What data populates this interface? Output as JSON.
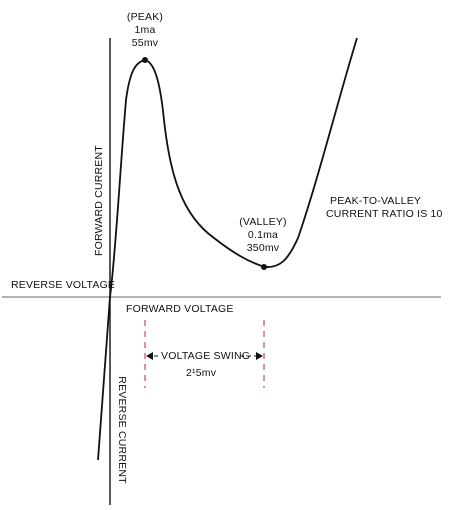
{
  "labels": {
    "peak": {
      "title": "(PEAK)",
      "current": "1ma",
      "voltage": "55mv"
    },
    "valley": {
      "title": "(VALLEY)",
      "current": "0.1ma",
      "voltage": "350mv"
    },
    "ratio": {
      "line1": "PEAK-TO-VALLEY",
      "line2": "CURRENT RATIO IS 10"
    },
    "axes": {
      "forward_current": "FORWARD CURRENT",
      "reverse_voltage": "REVERSE VOLTAGE",
      "forward_voltage": "FORWARD VOLTAGE",
      "reverse_current": "REVERSE CURRENT"
    },
    "swing": {
      "label": "VOLTAGE SWING",
      "value": "2¹5mv"
    }
  },
  "points": {
    "peak": {
      "current": "1ma",
      "voltage": "55mv"
    },
    "valley": {
      "current": "0.1ma",
      "voltage": "350mv"
    }
  },
  "colors": {
    "curve": "#111111",
    "axis": "#9a9a9a",
    "swing_marker": "#c0504d"
  }
}
